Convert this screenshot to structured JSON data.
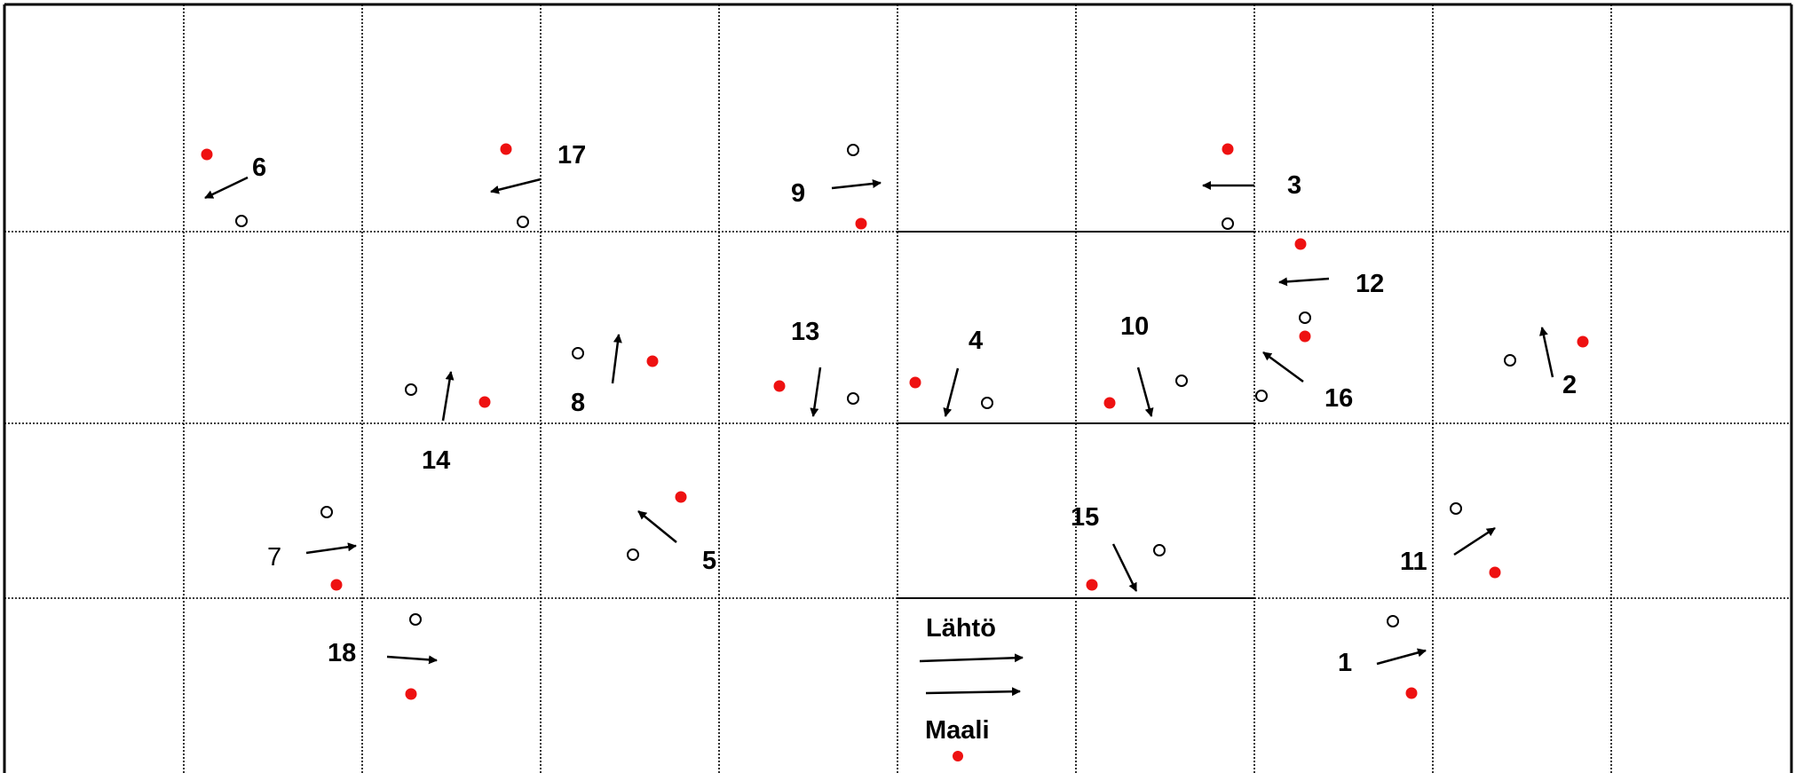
{
  "course": {
    "start_label": "Lähtö",
    "finish_label": "Maali",
    "colors": {
      "grid": "#000000",
      "filled_marker": "#ee1111",
      "open_marker": "#000000",
      "arrow": "#000000",
      "background": "#ffffff"
    },
    "grid": {
      "columns": 10,
      "rows": 4,
      "vertical_line_style": "dotted",
      "horizontal_line_style": "dotted"
    },
    "markers": [
      {
        "number": "1",
        "bold": true,
        "arrow": "northeast",
        "has_open": true,
        "has_filled": true
      },
      {
        "number": "2",
        "bold": true,
        "arrow": "north",
        "has_open": true,
        "has_filled": true
      },
      {
        "number": "3",
        "bold": true,
        "arrow": "west",
        "has_open": true,
        "has_filled": true
      },
      {
        "number": "4",
        "bold": true,
        "arrow": "south",
        "has_open": true,
        "has_filled": true
      },
      {
        "number": "5",
        "bold": true,
        "arrow": "northwest",
        "has_open": true,
        "has_filled": true
      },
      {
        "number": "6",
        "bold": true,
        "arrow": "southwest",
        "has_open": true,
        "has_filled": true
      },
      {
        "number": "7",
        "bold": false,
        "arrow": "east",
        "has_open": true,
        "has_filled": true
      },
      {
        "number": "8",
        "bold": true,
        "arrow": "north",
        "has_open": true,
        "has_filled": true
      },
      {
        "number": "9",
        "bold": true,
        "arrow": "east",
        "has_open": true,
        "has_filled": true
      },
      {
        "number": "10",
        "bold": true,
        "arrow": "south",
        "has_open": true,
        "has_filled": true
      },
      {
        "number": "11",
        "bold": true,
        "arrow": "northeast",
        "has_open": true,
        "has_filled": true
      },
      {
        "number": "12",
        "bold": true,
        "arrow": "west",
        "has_open": true,
        "has_filled": true
      },
      {
        "number": "13",
        "bold": true,
        "arrow": "south",
        "has_open": true,
        "has_filled": true
      },
      {
        "number": "14",
        "bold": true,
        "arrow": "north",
        "has_open": true,
        "has_filled": true
      },
      {
        "number": "15",
        "bold": true,
        "arrow": "southeast",
        "has_open": true,
        "has_filled": true
      },
      {
        "number": "16",
        "bold": true,
        "arrow": "northwest",
        "has_open": true,
        "has_filled": true
      },
      {
        "number": "17",
        "bold": true,
        "arrow": "west",
        "has_open": true,
        "has_filled": true
      },
      {
        "number": "18",
        "bold": true,
        "arrow": "east",
        "has_open": true,
        "has_filled": true
      }
    ]
  }
}
